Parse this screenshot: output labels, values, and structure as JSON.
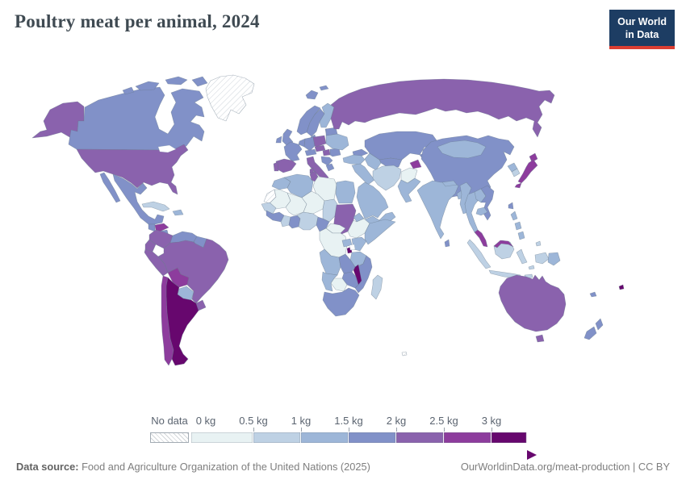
{
  "title": "Poultry meat per animal, 2024",
  "logo": {
    "line1": "Our World",
    "line2": "in Data",
    "bg": "#1d3d63",
    "accent": "#dc3e32"
  },
  "footer": {
    "source_label": "Data source:",
    "source_text": " Food and Agriculture Organization of the United Nations (2025)",
    "credit": "OurWorldinData.org/meat-production | CC BY"
  },
  "chart_data": {
    "type": "choropleth",
    "title": "Poultry meat per animal, 2024",
    "unit": "kg",
    "legend": {
      "no_data_label": "No data",
      "bins": [
        {
          "label": "0 kg",
          "range": "0-0.5 kg",
          "color": "#e8f2f3"
        },
        {
          "label": "0.5 kg",
          "range": "0.5-1 kg",
          "color": "#bed1e4"
        },
        {
          "label": "1 kg",
          "range": "1-1.5 kg",
          "color": "#9db6d8"
        },
        {
          "label": "1.5 kg",
          "range": "1.5-2 kg",
          "color": "#8191c8"
        },
        {
          "label": "2 kg",
          "range": "2-2.5 kg",
          "color": "#8a62ad"
        },
        {
          "label": "2.5 kg",
          "range": "2.5-3 kg",
          "color": "#8d3c9d"
        },
        {
          "label": "3 kg",
          "range": "3+ kg",
          "color": "#67076e"
        }
      ]
    },
    "countries": {
      "greenland": {
        "name": "Greenland",
        "bin": "no-data"
      },
      "westsahara": {
        "name": "Western Sahara",
        "bin": "no-data"
      },
      "frenchsouthern": {
        "name": "French Southern Territories",
        "bin": "no-data"
      },
      "canada": {
        "name": "Canada",
        "bin": 3
      },
      "usa": {
        "name": "United States",
        "bin": 4
      },
      "mexico": {
        "name": "Mexico",
        "bin": 3
      },
      "guatemala": {
        "name": "Guatemala",
        "bin": 3
      },
      "honduras": {
        "name": "Honduras",
        "bin": 5
      },
      "nicaragua": {
        "name": "Nicaragua",
        "bin": 3
      },
      "costarica": {
        "name": "Costa Rica",
        "bin": 4
      },
      "panama": {
        "name": "Panama",
        "bin": 4
      },
      "cuba": {
        "name": "Cuba",
        "bin": 1
      },
      "hispaniola": {
        "name": "Haiti / Dominican Republic",
        "bin": 2
      },
      "colombia": {
        "name": "Colombia",
        "bin": 4
      },
      "venezuela": {
        "name": "Venezuela",
        "bin": 3
      },
      "guyana": {
        "name": "Guyana / Suriname",
        "bin": 3
      },
      "ecuador": {
        "name": "Ecuador",
        "bin": 4
      },
      "peru": {
        "name": "Peru",
        "bin": 4
      },
      "brazil": {
        "name": "Brazil",
        "bin": 4
      },
      "bolivia": {
        "name": "Bolivia",
        "bin": 5
      },
      "paraguay": {
        "name": "Paraguay",
        "bin": 2
      },
      "uruguay": {
        "name": "Uruguay",
        "bin": 4
      },
      "chile": {
        "name": "Chile",
        "bin": 5
      },
      "argentina": {
        "name": "Argentina",
        "bin": 6
      },
      "iceland": {
        "name": "Iceland",
        "bin": 3
      },
      "uk": {
        "name": "United Kingdom",
        "bin": 3
      },
      "ireland": {
        "name": "Ireland",
        "bin": 3
      },
      "norway": {
        "name": "Norway",
        "bin": 3
      },
      "sweden": {
        "name": "Sweden",
        "bin": 3
      },
      "finland": {
        "name": "Finland",
        "bin": 2
      },
      "denmark": {
        "name": "Denmark",
        "bin": 3
      },
      "lowcountries": {
        "name": "Netherlands / Belgium",
        "bin": 3
      },
      "germany": {
        "name": "Germany",
        "bin": 3
      },
      "france": {
        "name": "France",
        "bin": 3
      },
      "spain": {
        "name": "Spain",
        "bin": 4
      },
      "portugal": {
        "name": "Portugal",
        "bin": 4
      },
      "italy": {
        "name": "Italy",
        "bin": 4
      },
      "poland": {
        "name": "Poland",
        "bin": 4
      },
      "czechia": {
        "name": "Czechia / Slovakia",
        "bin": 4
      },
      "austria": {
        "name": "Austria / Switzerland",
        "bin": 3
      },
      "hungary": {
        "name": "Hungary",
        "bin": 4
      },
      "romania": {
        "name": "Romania",
        "bin": 3
      },
      "balkans": {
        "name": "Balkans",
        "bin": 3
      },
      "greece": {
        "name": "Greece",
        "bin": 3
      },
      "ukraine": {
        "name": "Ukraine",
        "bin": 2
      },
      "belarus": {
        "name": "Belarus",
        "bin": 3
      },
      "baltics": {
        "name": "Baltic states",
        "bin": 3
      },
      "russia": {
        "name": "Russia",
        "bin": 4
      },
      "caucasus": {
        "name": "Caucasus",
        "bin": 3
      },
      "kazakhstan": {
        "name": "Kazakhstan",
        "bin": 3
      },
      "uzbekistan": {
        "name": "Uzbekistan",
        "bin": 3
      },
      "turkmenistan": {
        "name": "Turkmenistan",
        "bin": 2
      },
      "kyrgyzstan": {
        "name": "Kyrgyzstan",
        "bin": 3
      },
      "tajikistan": {
        "name": "Tajikistan",
        "bin": 5
      },
      "turkey": {
        "name": "Turkey",
        "bin": 2
      },
      "levant": {
        "name": "Syria / Iraq",
        "bin": 2
      },
      "saudi": {
        "name": "Saudi Arabia",
        "bin": 2
      },
      "yemen": {
        "name": "Yemen",
        "bin": 2
      },
      "oman": {
        "name": "Oman",
        "bin": 2
      },
      "iran": {
        "name": "Iran",
        "bin": 1
      },
      "afghanistan": {
        "name": "Afghanistan",
        "bin": 0
      },
      "pakistan": {
        "name": "Pakistan",
        "bin": 2
      },
      "morocco": {
        "name": "Morocco",
        "bin": 2
      },
      "algeria": {
        "name": "Algeria",
        "bin": 2
      },
      "tunisia": {
        "name": "Tunisia",
        "bin": 4
      },
      "libya": {
        "name": "Libya",
        "bin": 0
      },
      "egypt": {
        "name": "Egypt",
        "bin": 2
      },
      "mauritania": {
        "name": "Mauritania",
        "bin": 0
      },
      "mali": {
        "name": "Mali",
        "bin": 0
      },
      "niger": {
        "name": "Niger",
        "bin": 0
      },
      "chad": {
        "name": "Chad",
        "bin": 1
      },
      "sudan": {
        "name": "Sudan",
        "bin": 4
      },
      "eritrea": {
        "name": "Eritrea",
        "bin": 2
      },
      "ethiopia": {
        "name": "Ethiopia",
        "bin": 0
      },
      "somalia": {
        "name": "Somalia",
        "bin": 2
      },
      "senegal": {
        "name": "Senegal",
        "bin": 1
      },
      "guinea": {
        "name": "Guinea",
        "bin": 3
      },
      "ivorycoast": {
        "name": "Cote d'Ivoire",
        "bin": 1
      },
      "ghana": {
        "name": "Ghana",
        "bin": 3
      },
      "nigeria": {
        "name": "Nigeria",
        "bin": 1
      },
      "cameroon": {
        "name": "Cameroon",
        "bin": 3
      },
      "car": {
        "name": "Central African Republic",
        "bin": 0
      },
      "drc": {
        "name": "Democratic Republic of Congo",
        "bin": 0
      },
      "uganda": {
        "name": "Uganda",
        "bin": 2
      },
      "kenya": {
        "name": "Kenya",
        "bin": 2
      },
      "rwanda": {
        "name": "Rwanda / Burundi",
        "bin": 6
      },
      "tanzania": {
        "name": "Tanzania",
        "bin": 2
      },
      "angola": {
        "name": "Angola",
        "bin": 2
      },
      "zambia": {
        "name": "Zambia",
        "bin": 3
      },
      "malawi": {
        "name": "Malawi",
        "bin": 6
      },
      "mozambique": {
        "name": "Mozambique",
        "bin": 3
      },
      "zimbabwe": {
        "name": "Zimbabwe",
        "bin": 3
      },
      "botswana": {
        "name": "Botswana",
        "bin": 0
      },
      "namibia": {
        "name": "Namibia",
        "bin": 2
      },
      "southafrica": {
        "name": "South Africa",
        "bin": 3
      },
      "madagascar": {
        "name": "Madagascar",
        "bin": 1
      },
      "china": {
        "name": "China",
        "bin": 3
      },
      "mongolia": {
        "name": "Mongolia",
        "bin": 2
      },
      "nkorea": {
        "name": "North Korea",
        "bin": 2
      },
      "skorea": {
        "name": "South Korea",
        "bin": 1
      },
      "japan": {
        "name": "Japan",
        "bin": 5
      },
      "taiwan": {
        "name": "Taiwan",
        "bin": 3
      },
      "india": {
        "name": "India",
        "bin": 2
      },
      "nepal": {
        "name": "Nepal",
        "bin": 2
      },
      "bangladesh": {
        "name": "Bangladesh",
        "bin": 2
      },
      "srilanka": {
        "name": "Sri Lanka",
        "bin": 3
      },
      "myanmar": {
        "name": "Myanmar",
        "bin": 2
      },
      "thailand": {
        "name": "Thailand",
        "bin": 2
      },
      "laos": {
        "name": "Laos",
        "bin": 2
      },
      "vietnam": {
        "name": "Vietnam",
        "bin": 3
      },
      "cambodia": {
        "name": "Cambodia",
        "bin": 2
      },
      "malaysia": {
        "name": "Malaysia",
        "bin": 5
      },
      "indonesia": {
        "name": "Indonesia",
        "bin": 1
      },
      "philippines": {
        "name": "Philippines",
        "bin": 2
      },
      "png": {
        "name": "Papua New Guinea",
        "bin": 2
      },
      "australia": {
        "name": "Australia",
        "bin": 4
      },
      "newzealand": {
        "name": "New Zealand",
        "bin": 3
      },
      "fiji": {
        "name": "Fiji",
        "bin": 6
      },
      "newcaledonia": {
        "name": "New Caledonia",
        "bin": 3
      }
    }
  }
}
